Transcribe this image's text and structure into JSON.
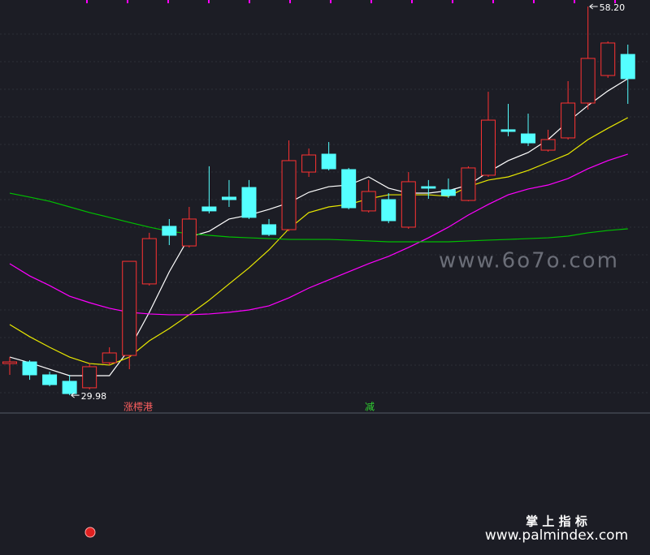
{
  "chart_data": {
    "type": "candlestick",
    "open": [
      32.28,
      32.4,
      31.46,
      30.99,
      30.52,
      32.34,
      32.87,
      38.06,
      42.24,
      40.82,
      43.65,
      44.36,
      45.06,
      42.36,
      42.0,
      46.18,
      47.48,
      46.36,
      43.36,
      44.18,
      42.18,
      45.12,
      44.89,
      44.12,
      45.95,
      49.25,
      48.95,
      47.77,
      48.66,
      51.19,
      53.19,
      54.72
    ],
    "high": [
      32.75,
      32.52,
      31.69,
      31.46,
      32.28,
      33.46,
      39.7,
      41.77,
      42.77,
      43.65,
      46.6,
      45.6,
      45.6,
      42.77,
      48.48,
      47.89,
      48.36,
      46.48,
      45.6,
      44.65,
      46.18,
      45.6,
      45.71,
      46.6,
      52.01,
      51.13,
      50.42,
      49.25,
      52.78,
      58.2,
      55.67,
      55.43
    ],
    "low": [
      31.46,
      31.1,
      30.63,
      29.98,
      30.4,
      32.17,
      31.87,
      37.94,
      40.88,
      40.7,
      43.18,
      43.65,
      42.77,
      41.53,
      41.88,
      45.83,
      46.3,
      43.47,
      43.24,
      42.47,
      42.06,
      44.24,
      44.3,
      44.06,
      45.83,
      48.78,
      48.07,
      47.66,
      48.54,
      50.72,
      53.02,
      51.13
    ],
    "close": [
      32.4,
      31.46,
      30.75,
      30.1,
      32.05,
      33.05,
      39.7,
      41.35,
      41.59,
      42.77,
      43.36,
      44.18,
      42.89,
      41.65,
      47.01,
      47.42,
      46.42,
      43.59,
      44.77,
      42.65,
      45.48,
      45.01,
      44.48,
      46.48,
      49.95,
      49.13,
      48.3,
      48.54,
      51.19,
      54.43,
      55.55,
      52.96
    ],
    "up_color": "#ff3232",
    "down_color": "#54ffff",
    "lines": [
      {
        "color": "#ffffff",
        "values": [
          32.75,
          32.34,
          31.87,
          31.4,
          31.4,
          31.4,
          33.34,
          36.0,
          38.94,
          41.47,
          41.88,
          42.77,
          43.06,
          43.47,
          43.95,
          44.71,
          45.12,
          45.24,
          45.83,
          45.01,
          44.65,
          44.65,
          44.83,
          45.24,
          46.18,
          47.01,
          47.6,
          48.54,
          49.84,
          51.01,
          52.07,
          52.96
        ]
      },
      {
        "color": "#e8e800",
        "values": [
          35.11,
          34.23,
          33.46,
          32.75,
          32.28,
          32.17,
          32.75,
          33.93,
          34.82,
          35.82,
          36.88,
          38.06,
          39.23,
          40.53,
          42.06,
          43.24,
          43.65,
          43.83,
          44.24,
          44.53,
          44.53,
          44.53,
          44.42,
          45.12,
          45.6,
          45.83,
          46.3,
          46.89,
          47.48,
          48.54,
          49.36,
          50.13
        ]
      },
      {
        "color": "#ff00ff",
        "values": [
          39.53,
          38.64,
          37.94,
          37.17,
          36.7,
          36.29,
          36.0,
          35.88,
          35.82,
          35.82,
          35.88,
          36.0,
          36.17,
          36.47,
          37.05,
          37.76,
          38.35,
          38.94,
          39.53,
          40.06,
          40.71,
          41.41,
          42.18,
          43.06,
          43.83,
          44.53,
          44.95,
          45.24,
          45.71,
          46.42,
          47.01,
          47.48
        ]
      },
      {
        "color": "#00c000",
        "values": [
          44.65,
          44.36,
          44.06,
          43.65,
          43.24,
          42.89,
          42.53,
          42.18,
          41.88,
          41.71,
          41.59,
          41.47,
          41.41,
          41.35,
          41.29,
          41.29,
          41.29,
          41.24,
          41.18,
          41.12,
          41.12,
          41.12,
          41.12,
          41.18,
          41.24,
          41.29,
          41.35,
          41.41,
          41.53,
          41.77,
          41.94,
          42.06
        ]
      }
    ],
    "ylim": [
      28.69,
      58.67
    ],
    "high_label": "58.20",
    "low_label": "29.98",
    "signals": [
      "涨樗港",
      "减"
    ]
  },
  "watermarks": {
    "site": "www.6o7o.com",
    "brand": "掌 上 指 标",
    "url": "www.palmindex.com"
  }
}
